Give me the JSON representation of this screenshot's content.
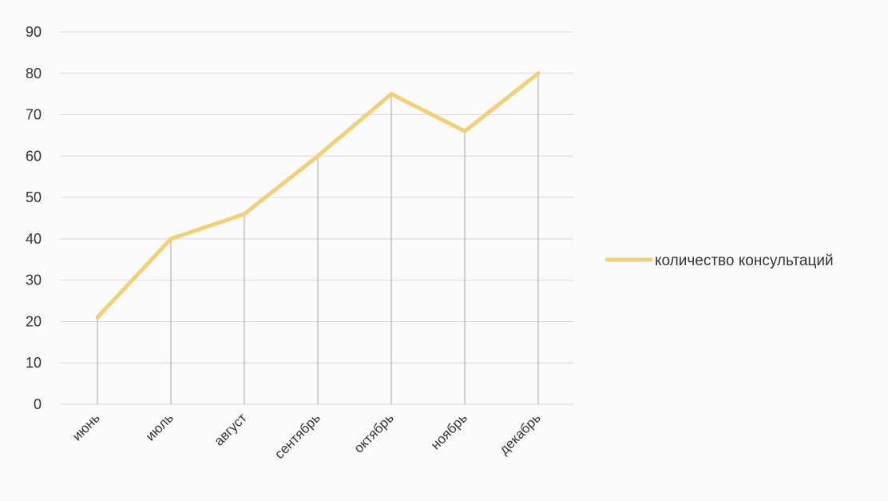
{
  "chart_data": {
    "type": "line",
    "categories": [
      "июнь",
      "июль",
      "август",
      "сентябрь",
      "октябрь",
      "ноябрь",
      "декабрь"
    ],
    "series": [
      {
        "name": "количество консультаций",
        "values": [
          21,
          40,
          46,
          60,
          75,
          66,
          80
        ],
        "color": "#f0d178"
      }
    ],
    "y_ticks": [
      "0",
      "10",
      "20",
      "30",
      "40",
      "50",
      "60",
      "70",
      "80",
      "90"
    ],
    "ylim": [
      0,
      90
    ],
    "grid": true,
    "drop_lines": true,
    "legend_position": "right",
    "title": "",
    "xlabel": "",
    "ylabel": ""
  }
}
